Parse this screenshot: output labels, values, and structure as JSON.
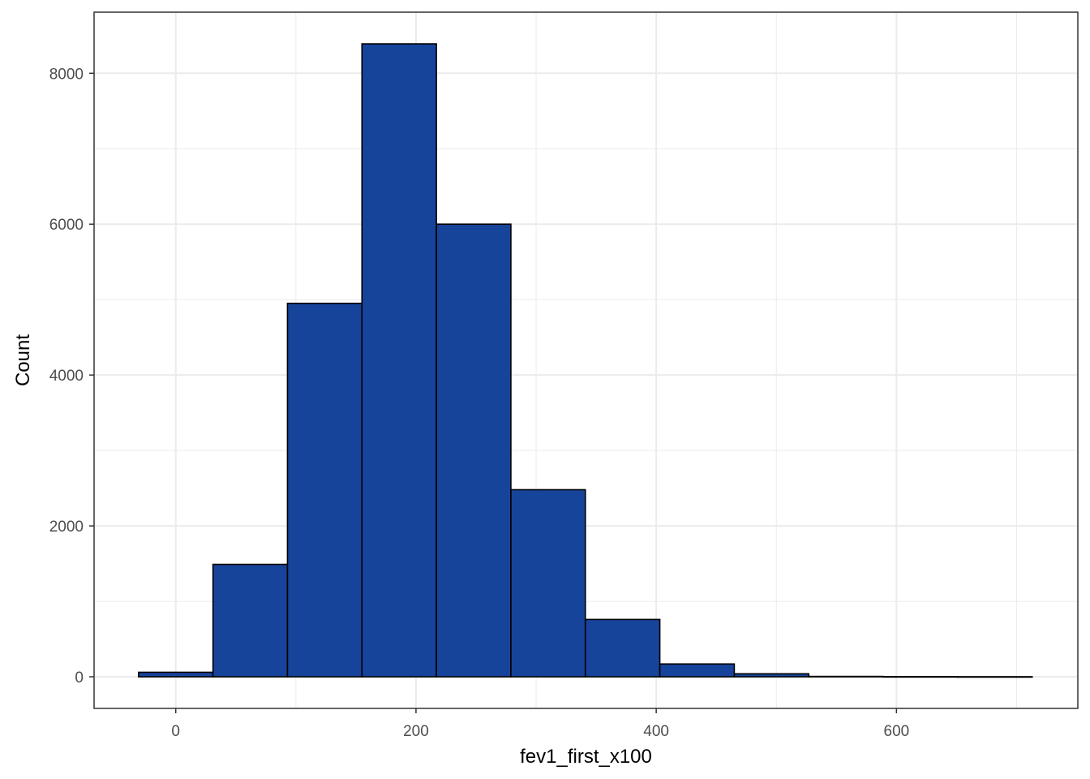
{
  "chart_data": {
    "type": "bar",
    "subtype": "histogram",
    "title": "",
    "xlabel": "fev1_first_x100",
    "ylabel": "Count",
    "bins": [
      {
        "start": -31,
        "end": 31,
        "count": 60
      },
      {
        "start": 31,
        "end": 93,
        "count": 1490
      },
      {
        "start": 93,
        "end": 155,
        "count": 4950
      },
      {
        "start": 155,
        "end": 217,
        "count": 8390
      },
      {
        "start": 217,
        "end": 279,
        "count": 6000
      },
      {
        "start": 279,
        "end": 341,
        "count": 2480
      },
      {
        "start": 341,
        "end": 403,
        "count": 760
      },
      {
        "start": 403,
        "end": 465,
        "count": 170
      },
      {
        "start": 465,
        "end": 527,
        "count": 40
      },
      {
        "start": 527,
        "end": 589,
        "count": 5
      },
      {
        "start": 589,
        "end": 651,
        "count": 2
      },
      {
        "start": 651,
        "end": 713,
        "count": 1
      }
    ],
    "xlim": [
      -68,
      751
    ],
    "ylim": [
      -419,
      8810
    ],
    "x_ticks": [
      0,
      200,
      400,
      600
    ],
    "y_ticks": [
      0,
      2000,
      4000,
      6000,
      8000
    ],
    "x_ticks_minor": [
      100,
      300,
      500,
      700
    ],
    "y_ticks_minor": [
      1000,
      3000,
      5000,
      7000
    ],
    "grid": true,
    "legend": "none",
    "colors": {
      "bar_fill": "#17449B",
      "bar_stroke": "#000000",
      "grid": "#EBEBEB",
      "panel_border": "#333333"
    }
  }
}
